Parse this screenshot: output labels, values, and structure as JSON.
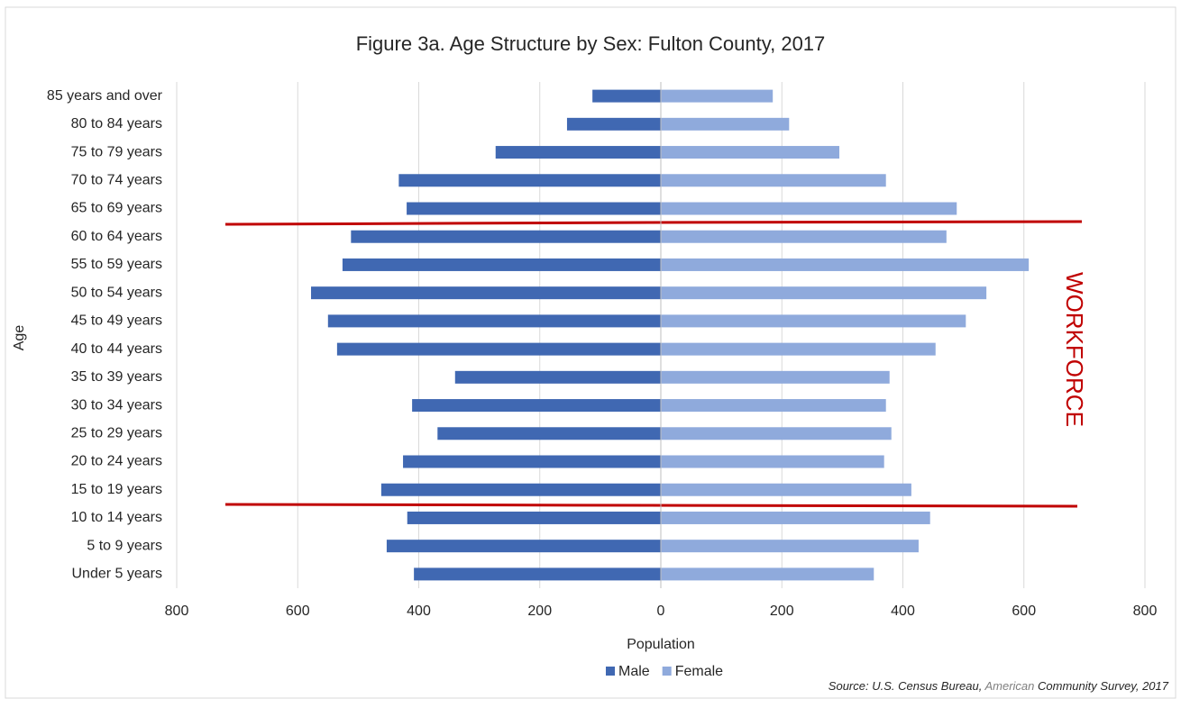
{
  "chart_data": {
    "type": "pyramid",
    "title": "Figure 3a. Age Structure by Sex: Fulton County, 2017",
    "x_label": "Population",
    "y_label": "Age",
    "categories": [
      "Under 5 years",
      "5 to 9 years",
      "10 to 14 years",
      "15 to 19 years",
      "20 to 24 years",
      "25 to 29 years",
      "30 to 34 years",
      "35 to 39 years",
      "40 to 44 years",
      "45 to 49 years",
      "50 to 54 years",
      "55 to 59 years",
      "60 to 64 years",
      "65 to 69 years",
      "70 to 74 years",
      "75 to 79 years",
      "80 to 84 years",
      "85 years and over"
    ],
    "series": [
      {
        "name": "Male",
        "color": "#4068b2",
        "values": [
          -408,
          -453,
          -419,
          -462,
          -426,
          -369,
          -411,
          -340,
          -535,
          -550,
          -578,
          -526,
          -512,
          -420,
          -433,
          -273,
          -155,
          -113
        ]
      },
      {
        "name": "Female",
        "color": "#8faadc",
        "values": [
          352,
          426,
          445,
          414,
          369,
          381,
          372,
          378,
          454,
          504,
          538,
          608,
          472,
          489,
          372,
          295,
          212,
          185
        ]
      }
    ],
    "xlim": [
      -800,
      800
    ],
    "xticks": [
      {
        "value": -800,
        "label": "800"
      },
      {
        "value": -600,
        "label": "600"
      },
      {
        "value": -400,
        "label": "400"
      },
      {
        "value": -200,
        "label": "200"
      },
      0,
      200,
      400,
      600,
      800
    ],
    "grid": true,
    "legend": "bottom",
    "annotation": "WORKFORCE",
    "source": [
      "Source: U.S. Census Bureau, ",
      "American",
      " Community Survey, 2017"
    ]
  }
}
